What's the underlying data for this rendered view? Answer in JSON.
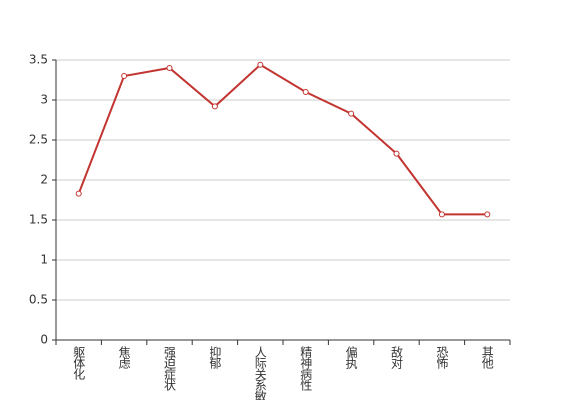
{
  "chart_data": {
    "type": "line",
    "categories": [
      "躯体化",
      "焦虑",
      "强迫症状",
      "抑郁",
      "人际关系敏感",
      "精神病性",
      "偏执",
      "敌对",
      "恐怖",
      "其他"
    ],
    "values": [
      1.83,
      3.3,
      3.4,
      2.92,
      3.44,
      3.1,
      2.83,
      2.33,
      1.57,
      1.57
    ],
    "color": "#c23531",
    "ylim": [
      0,
      3.5
    ],
    "yticks": [
      0,
      0.5,
      1,
      1.5,
      2,
      2.5,
      3,
      3.5
    ],
    "grid": true
  }
}
